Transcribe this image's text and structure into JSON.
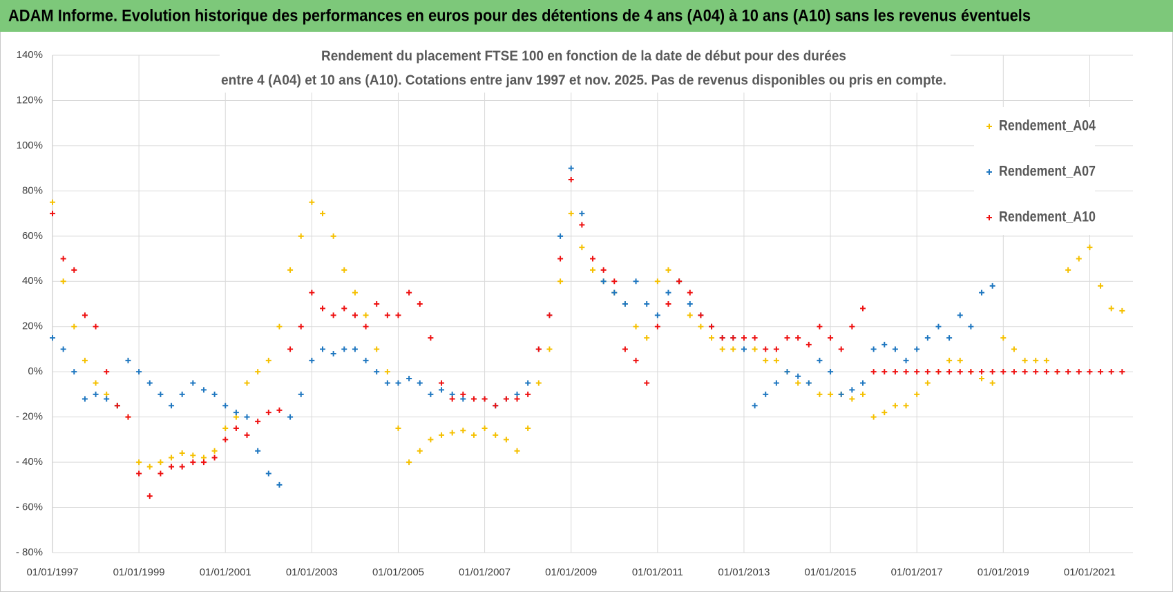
{
  "header": {
    "title": "ADAM Informe. Evolution historique des performances en euros pour des détentions de 4 ans (A04) à 10 ans (A10) sans les revenus éventuels"
  },
  "chart_data": {
    "type": "scatter",
    "title": [
      "Rendement du placement FTSE 100 en fonction de la date de début pour des durées",
      "entre 4 (A04) et 10 ans (A10). Cotations entre janv 1997 et nov. 2025. Pas de revenus disponibles ou pris en compte."
    ],
    "x": [
      "01/01/1997",
      "01/04/1997",
      "01/07/1997",
      "01/10/1997",
      "01/01/1998",
      "01/04/1998",
      "01/07/1998",
      "01/10/1998",
      "01/01/1999",
      "01/04/1999",
      "01/07/1999",
      "01/10/1999",
      "01/01/2000",
      "01/04/2000",
      "01/07/2000",
      "01/10/2000",
      "01/01/2001",
      "01/04/2001",
      "01/07/2001",
      "01/10/2001",
      "01/01/2002",
      "01/04/2002",
      "01/07/2002",
      "01/10/2002",
      "01/01/2003",
      "01/04/2003",
      "01/07/2003",
      "01/10/2003",
      "01/01/2004",
      "01/04/2004",
      "01/07/2004",
      "01/10/2004",
      "01/01/2005",
      "01/04/2005",
      "01/07/2005",
      "01/10/2005",
      "01/01/2006",
      "01/04/2006",
      "01/07/2006",
      "01/10/2006",
      "01/01/2007",
      "01/04/2007",
      "01/07/2007",
      "01/10/2007",
      "01/01/2008",
      "01/04/2008",
      "01/07/2008",
      "01/10/2008",
      "01/01/2009",
      "01/04/2009",
      "01/07/2009",
      "01/10/2009",
      "01/01/2010",
      "01/04/2010",
      "01/07/2010",
      "01/10/2010",
      "01/01/2011",
      "01/04/2011",
      "01/07/2011",
      "01/10/2011",
      "01/01/2012",
      "01/04/2012",
      "01/07/2012",
      "01/10/2012",
      "01/01/2013",
      "01/04/2013",
      "01/07/2013",
      "01/10/2013",
      "01/01/2014",
      "01/04/2014",
      "01/07/2014",
      "01/10/2014",
      "01/01/2015",
      "01/04/2015",
      "01/07/2015",
      "01/10/2015",
      "01/01/2016",
      "01/04/2016",
      "01/07/2016",
      "01/10/2016",
      "01/01/2017",
      "01/04/2017",
      "01/07/2017",
      "01/10/2017",
      "01/01/2018",
      "01/04/2018",
      "01/07/2018",
      "01/10/2018",
      "01/01/2019",
      "01/04/2019",
      "01/07/2019",
      "01/10/2019",
      "01/01/2020",
      "01/04/2020",
      "01/07/2020",
      "01/10/2020",
      "01/01/2021",
      "01/04/2021",
      "01/07/2021",
      "01/10/2021"
    ],
    "series": [
      {
        "name": "Rendement_A04",
        "color": "#f5c000",
        "values": [
          75,
          40,
          20,
          5,
          -5,
          -10,
          -15,
          -20,
          -40,
          -42,
          -40,
          -38,
          -36,
          -37,
          -38,
          -35,
          -25,
          -20,
          -5,
          0,
          5,
          20,
          45,
          60,
          75,
          70,
          60,
          45,
          35,
          25,
          10,
          0,
          -25,
          -40,
          -35,
          -30,
          -28,
          -27,
          -26,
          -28,
          -25,
          -28,
          -30,
          -35,
          -25,
          -5,
          10,
          40,
          70,
          55,
          45,
          40,
          35,
          30,
          20,
          15,
          40,
          45,
          40,
          25,
          20,
          15,
          10,
          10,
          10,
          10,
          5,
          5,
          0,
          -5,
          -5,
          -10,
          -10,
          -10,
          -12,
          -10,
          -20,
          -18,
          -15,
          -15,
          -10,
          -5,
          0,
          5,
          5,
          0,
          -3,
          -5,
          15,
          10,
          5,
          5,
          5,
          0,
          45,
          50,
          55,
          38,
          28,
          27
        ]
      },
      {
        "name": "Rendement_A07",
        "color": "#1f77c0",
        "values": [
          15,
          10,
          0,
          -12,
          -10,
          -12,
          -15,
          5,
          0,
          -5,
          -10,
          -15,
          -10,
          -5,
          -8,
          -10,
          -15,
          -18,
          -20,
          -35,
          -45,
          -50,
          -20,
          -10,
          5,
          10,
          8,
          10,
          10,
          5,
          0,
          -5,
          -5,
          -3,
          -5,
          -10,
          -8,
          -10,
          -12,
          -12,
          -12,
          -15,
          -12,
          -10,
          -5,
          10,
          25,
          60,
          90,
          70,
          50,
          40,
          35,
          30,
          40,
          30,
          25,
          35,
          40,
          30,
          25,
          20,
          15,
          15,
          10,
          -15,
          -10,
          -5,
          0,
          -2,
          -5,
          5,
          0,
          -10,
          -8,
          -5,
          10,
          12,
          10,
          5,
          10,
          15,
          20,
          15,
          25,
          20,
          35,
          38,
          null,
          null,
          null,
          null,
          null,
          null,
          null,
          null,
          null,
          null,
          null,
          null
        ]
      },
      {
        "name": "Rendement_A10",
        "color": "#ee1111",
        "values": [
          70,
          50,
          45,
          25,
          20,
          0,
          -15,
          -20,
          -45,
          -55,
          -45,
          -42,
          -42,
          -40,
          -40,
          -38,
          -30,
          -25,
          -28,
          -22,
          -18,
          -17,
          10,
          20,
          35,
          28,
          25,
          28,
          25,
          20,
          30,
          25,
          25,
          35,
          30,
          15,
          -5,
          -12,
          -10,
          -12,
          -12,
          -15,
          -12,
          -12,
          -10,
          10,
          25,
          50,
          85,
          65,
          50,
          45,
          40,
          10,
          5,
          -5,
          20,
          30,
          40,
          35,
          25,
          20,
          15,
          15,
          15,
          15,
          10,
          10,
          15,
          15,
          12,
          20,
          15,
          10,
          20,
          28,
          0,
          0,
          0,
          0,
          0,
          0,
          0,
          0,
          0,
          0,
          0,
          0,
          0,
          0,
          0,
          0,
          0,
          0,
          0,
          0,
          0,
          0,
          0,
          0
        ]
      }
    ],
    "xlim": [
      "01/01/1997",
      "01/01/2022"
    ],
    "xticks": [
      "01/01/1997",
      "01/01/1999",
      "01/01/2001",
      "01/01/2003",
      "01/01/2005",
      "01/01/2007",
      "01/01/2009",
      "01/01/2011",
      "01/01/2013",
      "01/01/2015",
      "01/01/2017",
      "01/01/2019",
      "01/01/2021"
    ],
    "ylim": [
      -80,
      140
    ],
    "yticks": [
      {
        "value": -80,
        "label": "- 80%"
      },
      {
        "value": -60,
        "label": "- 60%"
      },
      {
        "value": -40,
        "label": "- 40%"
      },
      {
        "value": -20,
        "label": "- 20%"
      },
      {
        "value": 0,
        "label": "0%"
      },
      {
        "value": 20,
        "label": "20%"
      },
      {
        "value": 40,
        "label": "40%"
      },
      {
        "value": 60,
        "label": "60%"
      },
      {
        "value": 80,
        "label": "80%"
      },
      {
        "value": 100,
        "label": "100%"
      },
      {
        "value": 120,
        "label": "120%"
      },
      {
        "value": 140,
        "label": "140%"
      }
    ],
    "grid": true,
    "legend": "right"
  }
}
